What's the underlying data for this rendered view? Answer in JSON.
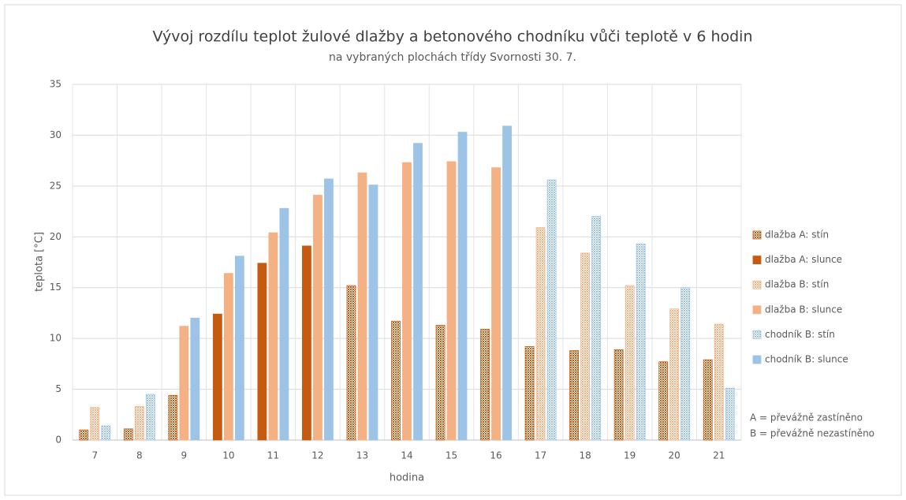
{
  "chart_data": {
    "type": "bar",
    "title": "Vývoj rozdílu teplot žulové dlažby a betonového chodníku vůči teplotě v 6 hodin",
    "subtitle": "na vybraných plochách třídy Svornosti 30. 7.",
    "x_label": "hodina",
    "y_label": "teplota [°C]",
    "categories": [
      "7",
      "8",
      "9",
      "10",
      "11",
      "12",
      "13",
      "14",
      "15",
      "16",
      "17",
      "18",
      "19",
      "20",
      "21"
    ],
    "series": [
      {
        "name": "dlažba A: stín",
        "color": "#c55a11",
        "fill_style": "dotted",
        "values": [
          1.0,
          1.1,
          4.4,
          null,
          null,
          null,
          15.2,
          11.7,
          11.3,
          10.9,
          9.2,
          8.8,
          8.9,
          7.7,
          7.9
        ]
      },
      {
        "name": "dlažba A: slunce",
        "color": "#c55a11",
        "fill_style": "solid",
        "values": [
          null,
          null,
          null,
          12.4,
          17.4,
          19.1,
          null,
          null,
          null,
          null,
          null,
          null,
          null,
          null,
          null
        ]
      },
      {
        "name": "dlažba B: stín",
        "color": "#f4b183",
        "fill_style": "dotted",
        "values": [
          3.2,
          3.3,
          null,
          null,
          null,
          null,
          null,
          null,
          null,
          null,
          20.9,
          18.4,
          15.2,
          12.9,
          11.4
        ]
      },
      {
        "name": "dlažba B: slunce",
        "color": "#f4b183",
        "fill_style": "solid",
        "values": [
          null,
          null,
          11.2,
          16.4,
          20.4,
          24.1,
          26.3,
          27.3,
          27.4,
          26.8,
          null,
          null,
          null,
          null,
          null
        ]
      },
      {
        "name": "chodník B: stín",
        "color": "#9dc3e6",
        "fill_style": "dotted",
        "values": [
          1.4,
          4.5,
          null,
          null,
          null,
          null,
          null,
          null,
          null,
          null,
          25.6,
          22.0,
          19.3,
          15.0,
          5.1
        ]
      },
      {
        "name": "chodník B: slunce",
        "color": "#9dc3e6",
        "fill_style": "solid",
        "values": [
          null,
          null,
          12.0,
          18.1,
          22.8,
          25.7,
          25.1,
          29.2,
          30.3,
          30.9,
          null,
          null,
          null,
          null,
          null
        ]
      }
    ],
    "ylim": [
      0,
      35
    ],
    "yticks": [
      0,
      5,
      10,
      15,
      20,
      25,
      30,
      35
    ],
    "grid": true,
    "legend": "right",
    "notes": [
      "A = převážně zastíněno",
      "B = převážně nezastíněno"
    ]
  }
}
